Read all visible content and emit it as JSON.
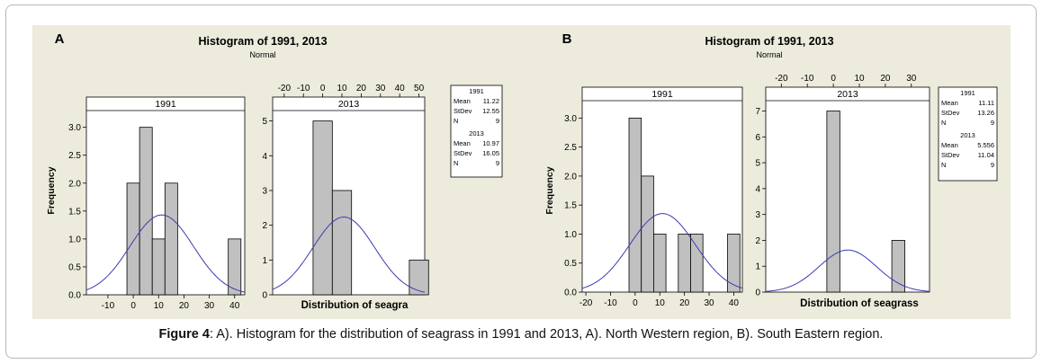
{
  "caption": {
    "label": "Figure 4",
    "text": ": A). Histogram for the distribution of seagrass in 1991 and 2013, A). North Western region, B). South Eastern region."
  },
  "colors": {
    "bar_fill": "#c0c0c0",
    "curve": "#3b3bb0",
    "panel_bg": "#ecebdc"
  },
  "chart_data": [
    {
      "type": "bar",
      "panel_letter": "A",
      "title": "Histogram of 1991, 2013",
      "subtitle": "Normal",
      "ylabel": "Frequency",
      "xlabel": "Distribution of seagra",
      "subplots": [
        {
          "name": "1991",
          "xlim": [
            -18.5,
            44
          ],
          "ylim": [
            0,
            3.3
          ],
          "xticks": [
            -10,
            0,
            10,
            20,
            30,
            40
          ],
          "yticks": [
            0.0,
            0.5,
            1.0,
            1.5,
            2.0,
            2.5,
            3.0
          ],
          "ytick_labels": [
            "0.0",
            "0.5",
            "1.0",
            "1.5",
            "2.0",
            "2.5",
            "3.0"
          ],
          "x_axis_side": "bottom",
          "bin_width": 5,
          "bins": [
            {
              "x_start": -2.5,
              "count": 2
            },
            {
              "x_start": 2.5,
              "count": 3
            },
            {
              "x_start": 7.5,
              "count": 1
            },
            {
              "x_start": 12.5,
              "count": 2
            },
            {
              "x_start": 37.5,
              "count": 1
            }
          ],
          "normal": {
            "mean": 11.22,
            "stdev": 12.55,
            "n": 9
          }
        },
        {
          "name": "2013",
          "xlim": [
            -26,
            53
          ],
          "ylim": [
            0,
            5.3
          ],
          "xticks": [
            -20,
            -10,
            0,
            10,
            20,
            30,
            40,
            50
          ],
          "yticks": [
            0,
            1,
            2,
            3,
            4,
            5
          ],
          "ytick_labels": [
            "0",
            "1",
            "2",
            "3",
            "4",
            "5"
          ],
          "x_axis_side": "top",
          "bin_width": 10,
          "bins": [
            {
              "x_start": -5,
              "count": 5
            },
            {
              "x_start": 5,
              "count": 3
            },
            {
              "x_start": 45,
              "count": 1
            }
          ],
          "normal": {
            "mean": 10.97,
            "stdev": 16.05,
            "n": 9
          }
        }
      ],
      "legend": [
        {
          "name": "1991",
          "rows": [
            {
              "label": "Mean",
              "value": "11.22"
            },
            {
              "label": "StDev",
              "value": "12.55"
            },
            {
              "label": "N",
              "value": "9"
            }
          ]
        },
        {
          "name": "2013",
          "rows": [
            {
              "label": "Mean",
              "value": "10.97"
            },
            {
              "label": "StDev",
              "value": "16.05"
            },
            {
              "label": "N",
              "value": "9"
            }
          ]
        }
      ]
    },
    {
      "type": "bar",
      "panel_letter": "B",
      "title": "Histogram of 1991, 2013",
      "subtitle": "Normal",
      "ylabel": "Frequency",
      "xlabel": "Distribution of seagrass",
      "subplots": [
        {
          "name": "1991",
          "xlim": [
            -21.5,
            43.5
          ],
          "ylim": [
            0,
            3.3
          ],
          "xticks": [
            -20,
            -10,
            0,
            10,
            20,
            30,
            40
          ],
          "yticks": [
            0.0,
            0.5,
            1.0,
            1.5,
            2.0,
            2.5,
            3.0
          ],
          "ytick_labels": [
            "0.0",
            "0.5",
            "1.0",
            "1.5",
            "2.0",
            "2.5",
            "3.0"
          ],
          "x_axis_side": "bottom",
          "bin_width": 5,
          "bins": [
            {
              "x_start": -2.5,
              "count": 3
            },
            {
              "x_start": 2.5,
              "count": 2
            },
            {
              "x_start": 7.5,
              "count": 1
            },
            {
              "x_start": 17.5,
              "count": 1
            },
            {
              "x_start": 22.5,
              "count": 1
            },
            {
              "x_start": 37.5,
              "count": 1
            }
          ],
          "normal": {
            "mean": 11.11,
            "stdev": 13.26,
            "n": 9
          }
        },
        {
          "name": "2013",
          "xlim": [
            -26,
            37
          ],
          "ylim": [
            0,
            7.4
          ],
          "xticks": [
            -20,
            -10,
            0,
            10,
            20,
            30
          ],
          "yticks": [
            0,
            1,
            2,
            3,
            4,
            5,
            6,
            7
          ],
          "ytick_labels": [
            "0",
            "1",
            "2",
            "3",
            "4",
            "5",
            "6",
            "7"
          ],
          "x_axis_side": "top",
          "bin_width": 5,
          "bins": [
            {
              "x_start": -2.5,
              "count": 7
            },
            {
              "x_start": 22.5,
              "count": 2
            }
          ],
          "normal": {
            "mean": 5.556,
            "stdev": 11.04,
            "n": 9
          }
        }
      ],
      "legend": [
        {
          "name": "1991",
          "rows": [
            {
              "label": "Mean",
              "value": "11.11"
            },
            {
              "label": "StDev",
              "value": "13.26"
            },
            {
              "label": "N",
              "value": "9"
            }
          ]
        },
        {
          "name": "2013",
          "rows": [
            {
              "label": "Mean",
              "value": "5.556"
            },
            {
              "label": "StDev",
              "value": "11.04"
            },
            {
              "label": "N",
              "value": "9"
            }
          ]
        }
      ]
    }
  ]
}
